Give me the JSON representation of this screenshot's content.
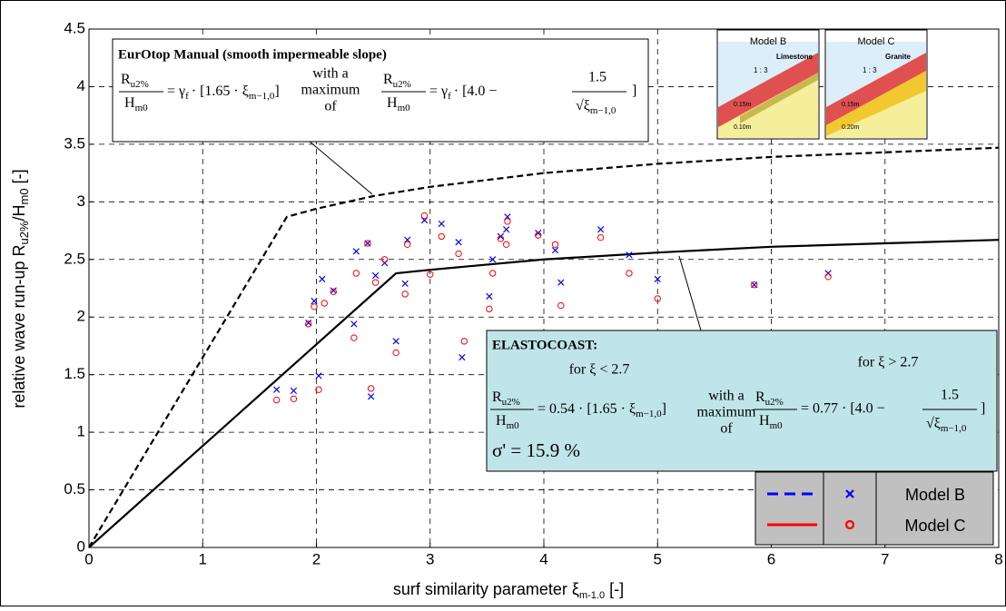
{
  "chart_data": {
    "type": "scatter",
    "xlabel": {
      "main": "surf similarity parameter ξ",
      "sub": "m-1.0",
      "end": " [-]"
    },
    "ylabel": {
      "main": "relative wave run-up R",
      "sub1": "u2%",
      "mid": "/H",
      "sub2": "m0",
      "end": " [-]"
    },
    "xlim": [
      0,
      8
    ],
    "ylim": [
      0,
      4.5
    ],
    "xticks": [
      0,
      1,
      2,
      3,
      4,
      5,
      6,
      7,
      8
    ],
    "yticks": [
      0,
      0.5,
      1,
      1.5,
      2,
      2.5,
      3,
      3.5,
      4,
      4.5
    ],
    "grid": true,
    "series": [
      {
        "name": "Model B",
        "color": "#0000ff",
        "marker": "x",
        "line_style": "dashed",
        "x": [
          1.65,
          1.8,
          1.93,
          1.98,
          2.02,
          2.05,
          2.15,
          2.33,
          2.35,
          2.45,
          2.48,
          2.52,
          2.6,
          2.7,
          2.78,
          2.8,
          2.95,
          3.1,
          3.25,
          3.28,
          3.52,
          3.55,
          3.62,
          3.67,
          3.68,
          3.95,
          4.1,
          4.15,
          4.5,
          4.75,
          5,
          5.85,
          6.5
        ],
        "values": [
          1.37,
          1.36,
          1.95,
          2.14,
          1.49,
          2.33,
          2.23,
          1.94,
          2.57,
          2.64,
          1.31,
          2.36,
          2.47,
          1.79,
          2.29,
          2.67,
          2.84,
          2.81,
          2.65,
          1.65,
          2.18,
          2.5,
          2.7,
          2.76,
          2.87,
          2.73,
          2.58,
          2.3,
          2.76,
          2.54,
          2.33,
          2.28,
          2.38
        ]
      },
      {
        "name": "Model C",
        "color": "#ff0000",
        "marker": "o",
        "line_style": "solid",
        "x": [
          1.65,
          1.8,
          1.93,
          1.98,
          2.02,
          2.07,
          2.15,
          2.33,
          2.35,
          2.45,
          2.48,
          2.52,
          2.6,
          2.7,
          2.78,
          2.8,
          2.95,
          3.0,
          3.1,
          3.25,
          3.3,
          3.52,
          3.55,
          3.62,
          3.67,
          3.68,
          3.95,
          4.1,
          4.15,
          4.5,
          4.75,
          5,
          5.85,
          6.5
        ],
        "values": [
          1.28,
          1.29,
          1.94,
          2.09,
          1.37,
          2.12,
          2.22,
          1.82,
          2.38,
          2.64,
          1.38,
          2.3,
          2.5,
          1.69,
          2.2,
          2.63,
          2.88,
          2.37,
          2.7,
          2.55,
          1.79,
          2.07,
          2.38,
          2.68,
          2.63,
          2.83,
          2.71,
          2.63,
          2.1,
          2.69,
          2.38,
          2.16,
          2.28,
          2.35
        ]
      }
    ],
    "lines": [
      {
        "color": "#000000",
        "line_style": "dashed",
        "x": [
          0,
          1.74,
          2,
          2.5,
          3,
          4,
          5,
          6,
          7,
          8
        ],
        "values": [
          0,
          2.87,
          2.94,
          3.05,
          3.13,
          3.25,
          3.33,
          3.39,
          3.43,
          3.47
        ]
      },
      {
        "color": "#000000",
        "line_style": "solid",
        "x": [
          0,
          2.7,
          3,
          4,
          5,
          6,
          7,
          8
        ],
        "values": [
          0,
          2.38,
          2.41,
          2.5,
          2.56,
          2.61,
          2.64,
          2.67
        ]
      }
    ],
    "annotations": {
      "eurotop": {
        "title": "EurOtop Manual (smooth impermeable slope)",
        "R": "R",
        "Rsub": "u2%",
        "H": "H",
        "Hsub": "m0",
        "eq": "= γ",
        "eqsub": "f",
        "expr1": "· [1.65 · ξ",
        "expr1sub": "m−1,0",
        "close": "]",
        "joiner": [
          "with a",
          "maximum",
          "of"
        ],
        "expr2": "· [4.0 −",
        "num": "1.5",
        "den": "√ξ",
        "densub": "m−1,0"
      },
      "elastocoast": {
        "title": "ELASTOCOAST:",
        "cond1": "for ξ < 2.7",
        "cond2": "for ξ > 2.7",
        "R": "R",
        "Rsub": "u2%",
        "H": "H",
        "Hsub": "m0",
        "eq1": "= 0.54 · [1.65 · ξ",
        "eq1sub": "m−1,0",
        "close": "]",
        "joiner": [
          "with a",
          "maximum",
          "of"
        ],
        "eq2": "= 0.77 · [4.0 −",
        "num": "1.5",
        "den": "√ξ",
        "densub": "m−1,0",
        "sigma": "σ' = 15.9 %"
      },
      "insets": [
        {
          "title": "Model B",
          "material": "Limestone",
          "slope": "1 : 3",
          "d1": "0.15m",
          "d2": "0.10m"
        },
        {
          "title": "Model C",
          "material": "Granite",
          "slope": "1 : 3",
          "d1": "0.15m",
          "d2": "0.20m"
        }
      ]
    }
  }
}
